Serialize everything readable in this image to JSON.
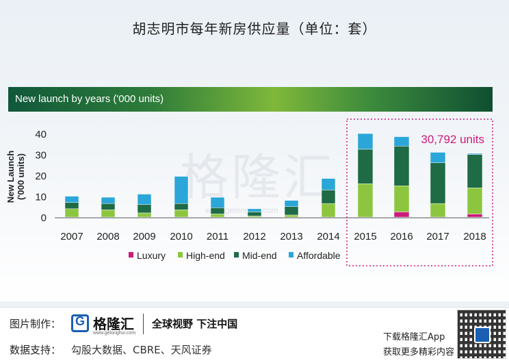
{
  "top_title": "胡志明市每年新房供应量（单位：套）",
  "header": "New launch by years ('000 units)",
  "watermark": {
    "text": "格隆汇",
    "url": "www.gelonghui.com"
  },
  "chart_data": {
    "type": "bar",
    "stacked": true,
    "categories": [
      "2007",
      "2008",
      "2009",
      "2010",
      "2011",
      "2012",
      "2013",
      "2014",
      "2015",
      "2016",
      "2017",
      "2018"
    ],
    "series": [
      {
        "name": "Luxury",
        "color": "#cc1a7a",
        "values": [
          0,
          0,
          0,
          0,
          0,
          0,
          0,
          0,
          0,
          2.5,
          0,
          1.5
        ]
      },
      {
        "name": "High-end",
        "color": "#8cc63f",
        "values": [
          4,
          3.5,
          2,
          3.5,
          1.5,
          0.5,
          1,
          6.5,
          16,
          12.5,
          6.5,
          12.5
        ]
      },
      {
        "name": "Mid-end",
        "color": "#1e6b46",
        "values": [
          3,
          3,
          4,
          3,
          3,
          2,
          4,
          6.5,
          16.5,
          19,
          19.5,
          16
        ]
      },
      {
        "name": "Affordable",
        "color": "#2ba6d8",
        "values": [
          3,
          3,
          5,
          13,
          5,
          1.5,
          3,
          5.5,
          7.5,
          4.5,
          5,
          0.5
        ]
      }
    ],
    "ylabel": "New Launch\n('000 units)",
    "yticks": [
      0,
      10,
      20,
      30,
      40
    ],
    "ylim": [
      0,
      40
    ],
    "grid": false,
    "legend_position": "bottom",
    "annotation": "30,792 units",
    "highlight_range": [
      "2015",
      "2018"
    ]
  },
  "footer": {
    "label_chart": "图片制作：",
    "logo_name": "格隆汇",
    "logo_url": "www.gelonghui.com",
    "slogan": "全球视野 下注中国",
    "label_data": "数据支持：",
    "sources": "勾股大数据、CBRE、天风证券",
    "app_line1": "下载格隆汇App",
    "app_line2": "获取更多精彩内容"
  }
}
